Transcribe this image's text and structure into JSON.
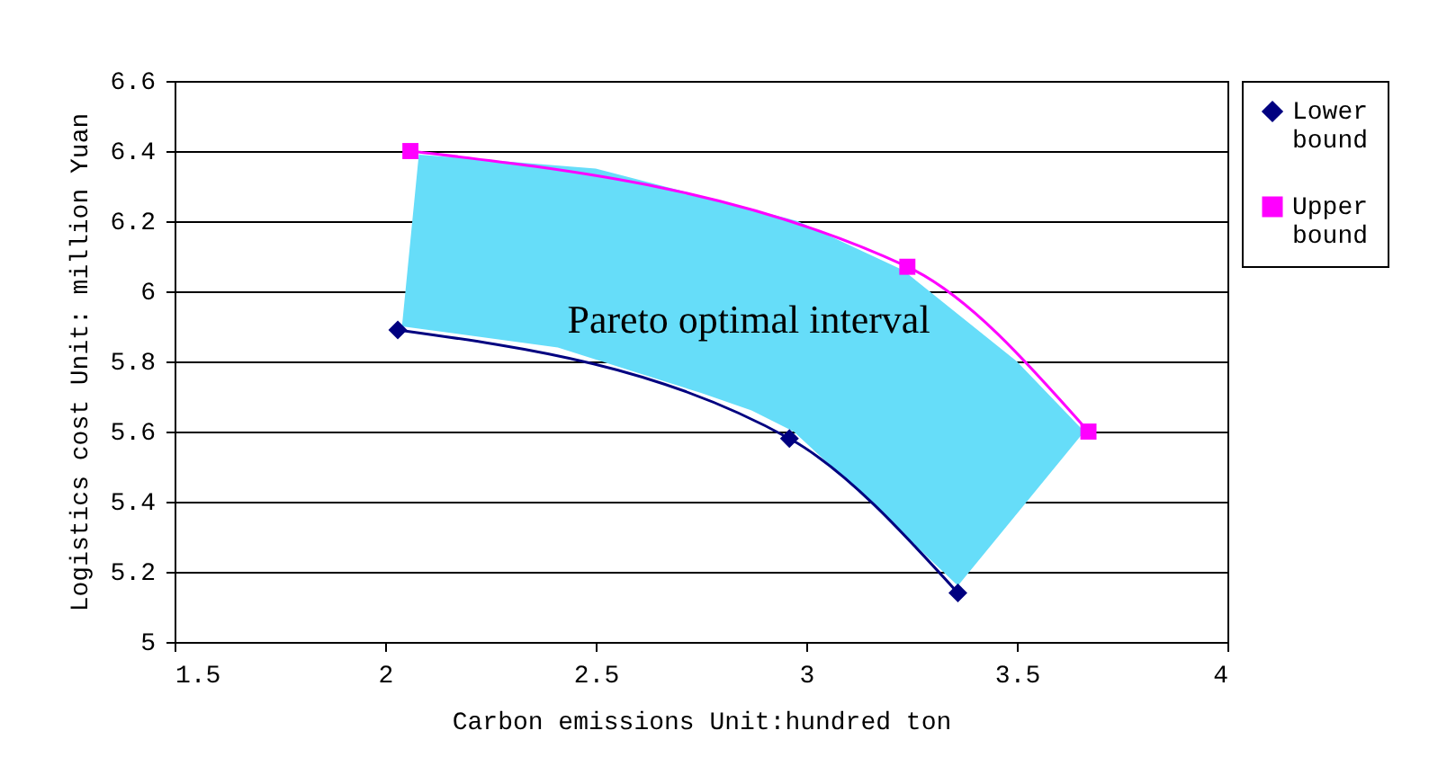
{
  "chart_data": {
    "type": "line",
    "xlabel": "Carbon emissions  Unit:hundred ton",
    "ylabel": "Logistics cost  Unit: million Yuan",
    "xlim": [
      1.5,
      4
    ],
    "xticks": [
      1.5,
      2,
      2.5,
      3,
      3.5,
      4
    ],
    "ylim": [
      5,
      6.6
    ],
    "yticks": [
      5,
      5.2,
      5.4,
      5.6,
      5.8,
      6,
      6.2,
      6.4,
      6.6
    ],
    "grid": "y",
    "legend": "right",
    "line_style": "solid",
    "annotations": [
      "Pareto optimal interval"
    ],
    "series": [
      {
        "type": "line",
        "name": "Lower bound",
        "color": "#000080",
        "marker": "diamond",
        "x": [
          2.03,
          2.96,
          3.36
        ],
        "values": [
          5.89,
          5.58,
          5.14
        ]
      },
      {
        "type": "line",
        "name": "Upper bound",
        "color": "#ff00ff",
        "marker": "square",
        "x": [
          2.06,
          3.24,
          3.67
        ],
        "values": [
          6.4,
          6.07,
          5.6
        ]
      },
      {
        "type": "area",
        "color": "#66ddf9",
        "x": [
          2.04,
          2.08,
          2.5,
          2.98,
          3.23,
          3.5,
          3.66,
          3.36,
          3.15,
          2.97,
          2.87,
          2.75,
          2.41,
          2.04
        ],
        "values": [
          5.9,
          6.39,
          6.35,
          6.2,
          6.06,
          5.8,
          5.6,
          5.16,
          5.4,
          5.6,
          5.66,
          5.71,
          5.84,
          5.9
        ]
      }
    ]
  }
}
